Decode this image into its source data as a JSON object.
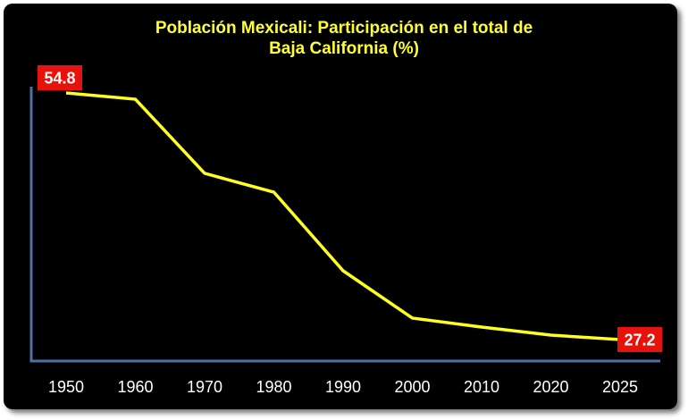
{
  "chart_data": {
    "type": "line",
    "title_line1": "Población Mexicali: Participación en el total de",
    "title_line2": "Baja California (%)",
    "xlabel": "",
    "ylabel": "",
    "categories": [
      "1950",
      "1960",
      "1970",
      "1980",
      "1990",
      "2000",
      "2010",
      "2020",
      "2025"
    ],
    "series": [
      {
        "values": [
          54.8,
          54.1,
          45.8,
          43.7,
          34.9,
          29.6,
          28.6,
          27.7,
          27.2
        ]
      }
    ],
    "data_labels": [
      {
        "index": 0,
        "text": "54.8"
      },
      {
        "index": 8,
        "text": "27.2"
      }
    ],
    "ylim": [
      24.8,
      55.5
    ],
    "grid": false,
    "legend": "none",
    "colors": {
      "background": "#000000",
      "title": "#ffff33",
      "line": "#ffff22",
      "axis": "#4f6fa8",
      "tick_label": "#ffffff",
      "data_label_bg": "#e8120c",
      "data_label_text": "#ffffff"
    }
  }
}
